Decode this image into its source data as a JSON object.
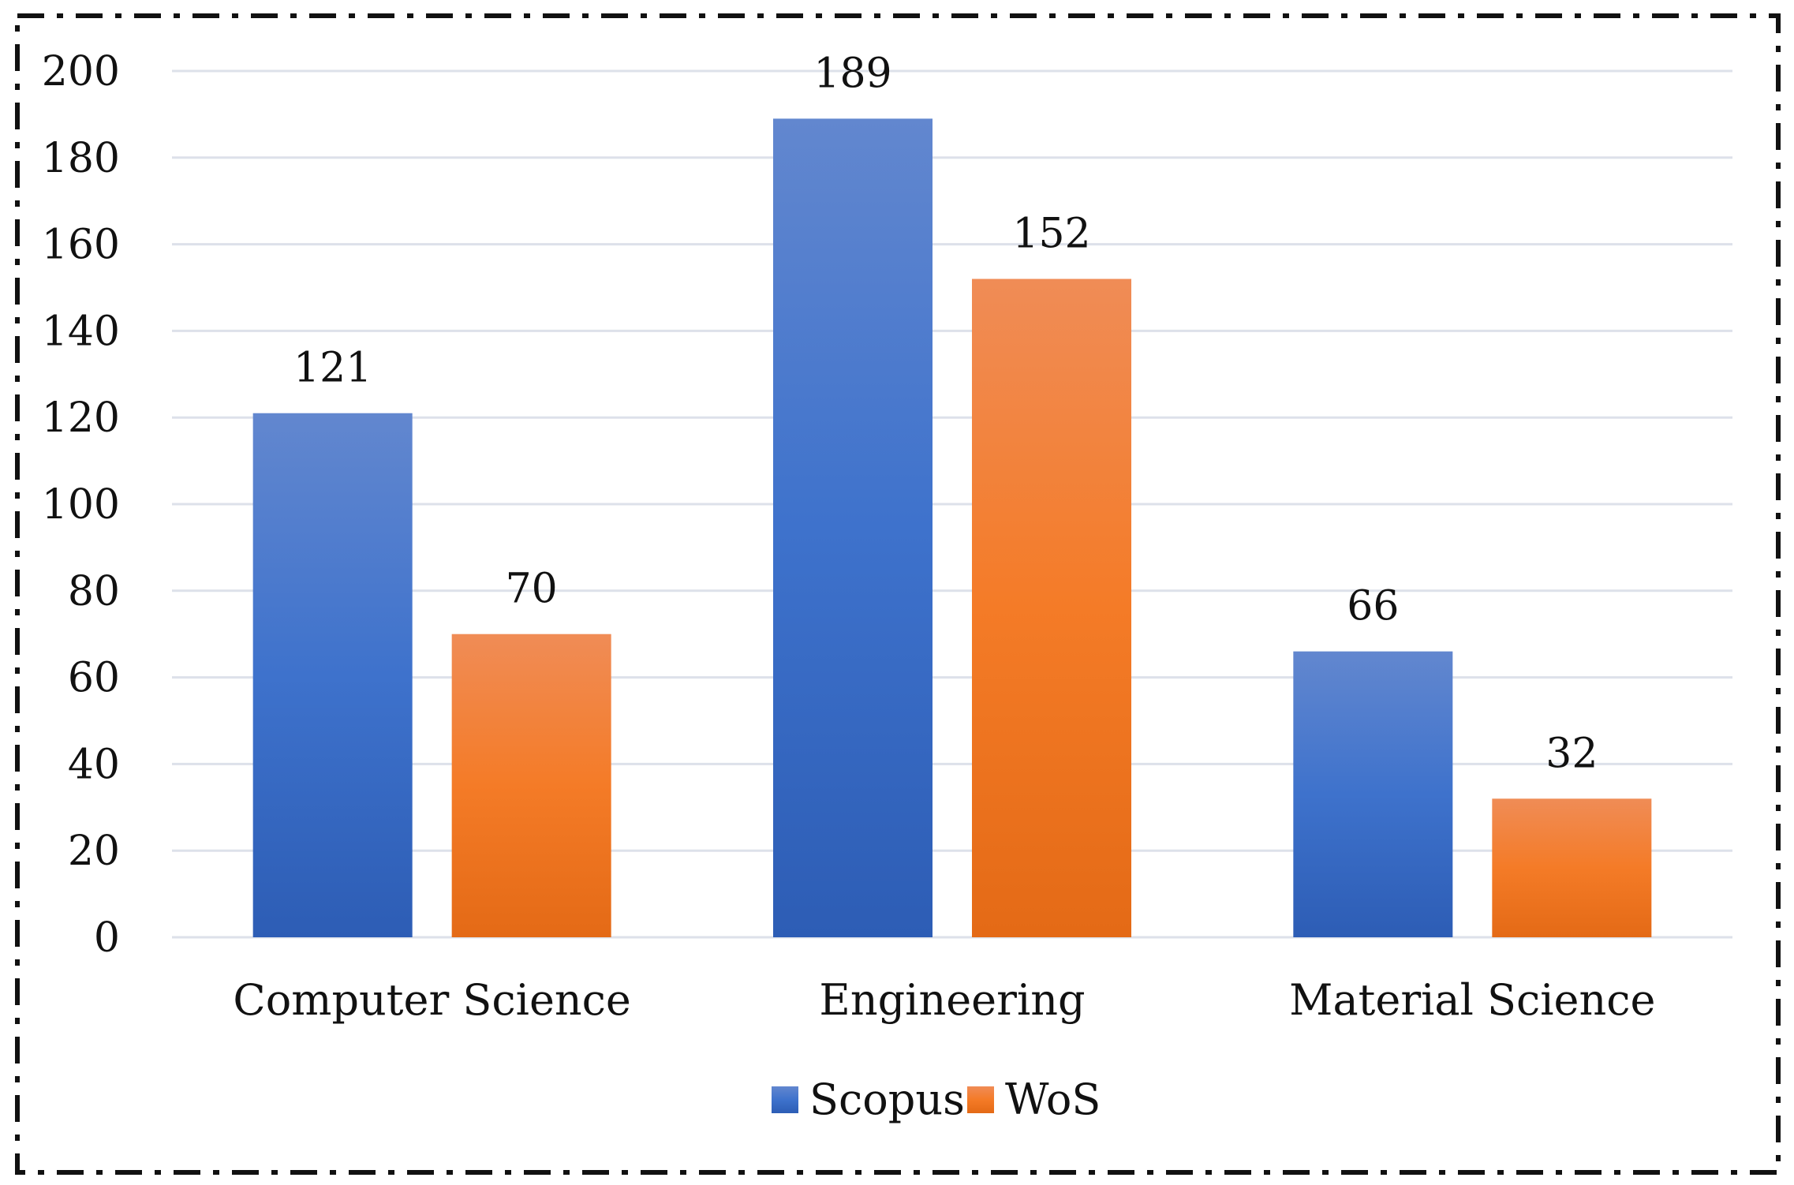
{
  "chart_data": {
    "type": "bar",
    "categories": [
      "Computer Science",
      "Engineering",
      "Material Science"
    ],
    "series": [
      {
        "name": "Scopus",
        "values": [
          121,
          189,
          66
        ],
        "color": "#4472c4"
      },
      {
        "name": "WoS",
        "values": [
          70,
          152,
          32
        ],
        "color": "#ed7d31"
      }
    ],
    "ylim": [
      0,
      200
    ],
    "yticks": [
      0,
      20,
      40,
      60,
      80,
      100,
      120,
      140,
      160,
      180,
      200
    ],
    "grid": true,
    "legend_position": "bottom-center",
    "data_labels": true
  }
}
